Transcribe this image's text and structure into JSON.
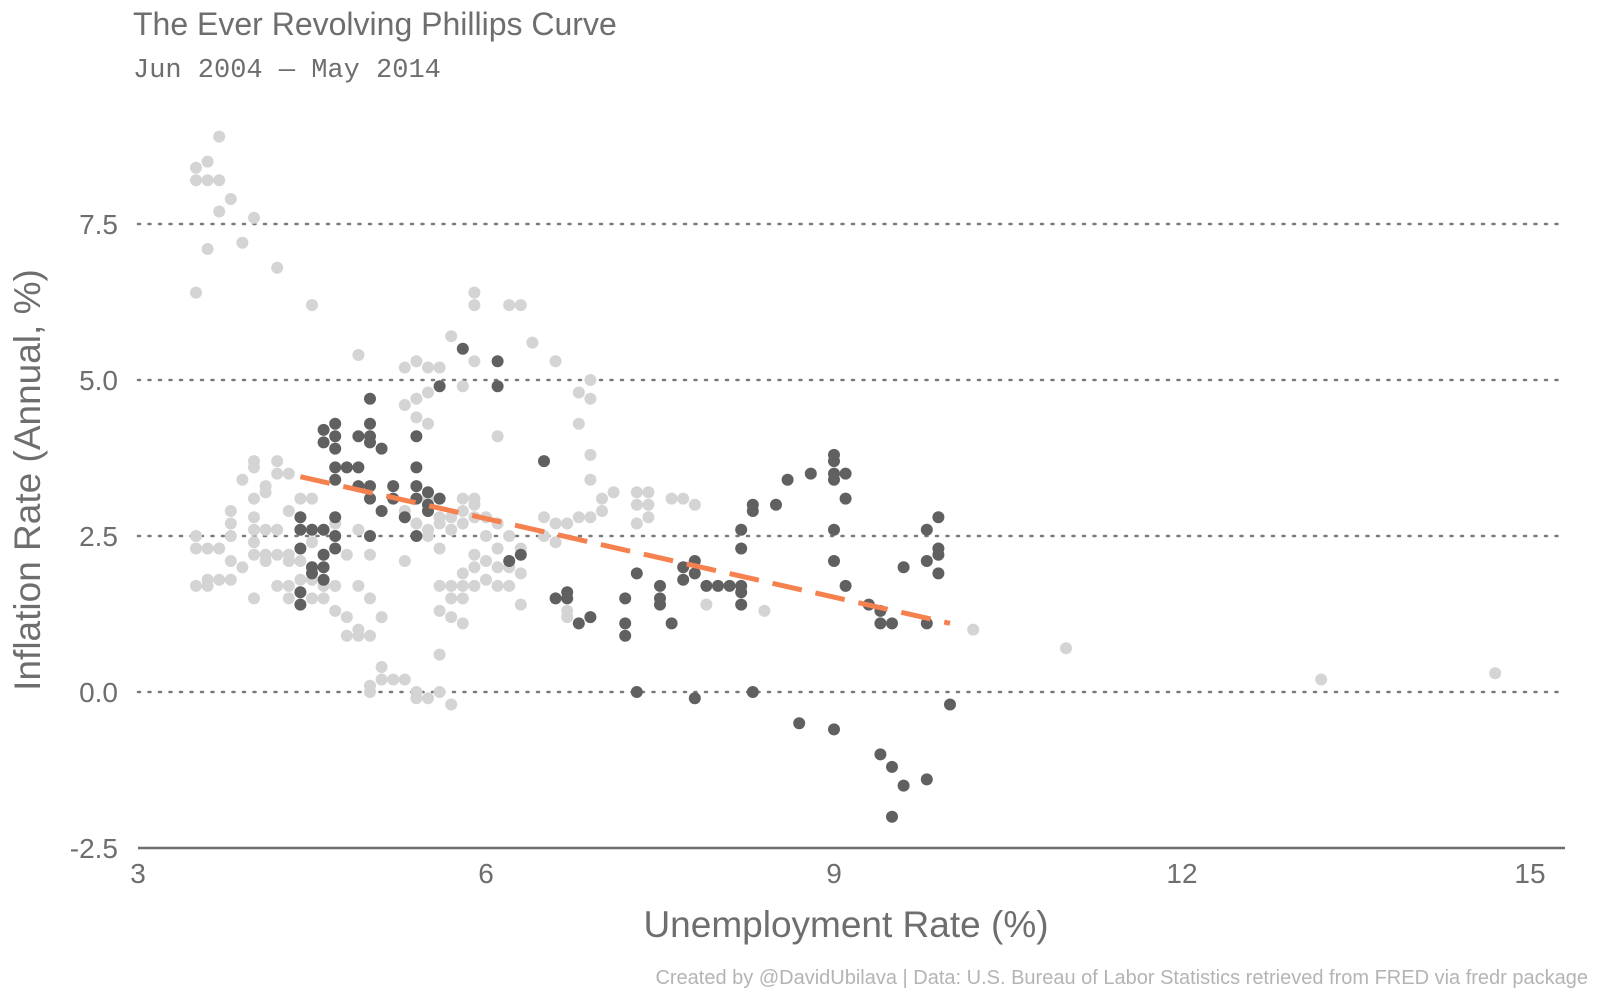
{
  "chart_data": {
    "type": "scatter",
    "title": "The Ever Revolving Phillips Curve",
    "subtitle": "Jun 2004 — May 2014",
    "xlabel": "Unemployment Rate (%)",
    "ylabel": "Inflation Rate (Annual, %)",
    "caption": "Created by @DavidUbilava | Data: U.S. Bureau of Labor Statistics retrieved from FRED via fredr package",
    "xlim": [
      3,
      15.2
    ],
    "ylim": [
      -2.5,
      9.2
    ],
    "xticks": [
      {
        "value": 3,
        "label": "3"
      },
      {
        "value": 6,
        "label": "6"
      },
      {
        "value": 9,
        "label": "9"
      },
      {
        "value": 12,
        "label": "12"
      },
      {
        "value": 15,
        "label": "15"
      }
    ],
    "yticks": [
      {
        "value": -2.5,
        "label": "-2.5"
      },
      {
        "value": 0,
        "label": "0.0"
      },
      {
        "value": 2.5,
        "label": "2.5"
      },
      {
        "value": 5,
        "label": "5.0"
      },
      {
        "value": 7.5,
        "label": "7.5"
      }
    ],
    "grid": "horizontal dotted",
    "colors": {
      "other": "#d4d4d4",
      "highlight": "#606060",
      "trend": "#f5814f",
      "text": "#6e6e6e",
      "caption": "#b4b4b4"
    },
    "series": [
      {
        "points": [
          [
            3.5,
            8.4
          ],
          [
            3.6,
            8.5
          ],
          [
            3.7,
            8.9
          ],
          [
            3.5,
            8.2
          ],
          [
            3.6,
            8.2
          ],
          [
            3.7,
            8.2
          ],
          [
            3.8,
            7.9
          ],
          [
            3.7,
            7.7
          ],
          [
            3.6,
            7.1
          ],
          [
            4.0,
            7.6
          ],
          [
            3.9,
            7.2
          ],
          [
            4.2,
            6.8
          ],
          [
            3.5,
            6.4
          ],
          [
            4.5,
            6.2
          ],
          [
            5.9,
            6.4
          ],
          [
            5.9,
            6.2
          ],
          [
            6.2,
            6.2
          ],
          [
            6.3,
            6.2
          ],
          [
            6.4,
            5.6
          ],
          [
            5.7,
            5.7
          ],
          [
            5.6,
            5.2
          ],
          [
            5.9,
            5.3
          ],
          [
            6.6,
            5.3
          ],
          [
            6.9,
            5.0
          ],
          [
            6.8,
            4.8
          ],
          [
            6.9,
            4.7
          ],
          [
            5.8,
            4.9
          ],
          [
            4.9,
            5.4
          ],
          [
            5.3,
            5.2
          ],
          [
            5.4,
            5.3
          ],
          [
            5.5,
            5.2
          ],
          [
            5.5,
            4.8
          ],
          [
            5.4,
            4.7
          ],
          [
            5.3,
            4.6
          ],
          [
            5.4,
            4.4
          ],
          [
            5.5,
            4.3
          ],
          [
            6.1,
            4.1
          ],
          [
            6.8,
            4.3
          ],
          [
            3.5,
            2.5
          ],
          [
            3.5,
            2.3
          ],
          [
            3.6,
            2.3
          ],
          [
            3.7,
            2.3
          ],
          [
            3.5,
            1.7
          ],
          [
            3.6,
            1.7
          ],
          [
            3.7,
            1.8
          ],
          [
            3.6,
            1.8
          ],
          [
            3.8,
            1.8
          ],
          [
            3.8,
            2.1
          ],
          [
            3.8,
            2.5
          ],
          [
            3.8,
            2.7
          ],
          [
            3.8,
            2.9
          ],
          [
            3.9,
            2.0
          ],
          [
            3.9,
            3.4
          ],
          [
            4.0,
            3.7
          ],
          [
            4.0,
            3.6
          ],
          [
            4.0,
            3.1
          ],
          [
            4.0,
            2.8
          ],
          [
            4.0,
            2.6
          ],
          [
            4.0,
            2.4
          ],
          [
            4.0,
            2.2
          ],
          [
            4.0,
            1.5
          ],
          [
            4.1,
            3.3
          ],
          [
            4.1,
            3.2
          ],
          [
            4.1,
            2.6
          ],
          [
            4.1,
            2.2
          ],
          [
            4.1,
            2.1
          ],
          [
            4.2,
            3.7
          ],
          [
            4.2,
            3.5
          ],
          [
            4.2,
            2.6
          ],
          [
            4.2,
            2.2
          ],
          [
            4.2,
            1.7
          ],
          [
            4.3,
            3.5
          ],
          [
            4.3,
            2.9
          ],
          [
            4.3,
            2.2
          ],
          [
            4.3,
            2.1
          ],
          [
            4.3,
            1.7
          ],
          [
            4.3,
            1.5
          ],
          [
            4.4,
            3.1
          ],
          [
            4.4,
            2.1
          ],
          [
            4.4,
            1.8
          ],
          [
            4.4,
            1.6
          ],
          [
            4.5,
            3.1
          ],
          [
            4.5,
            2.4
          ],
          [
            4.5,
            1.8
          ],
          [
            4.5,
            1.5
          ],
          [
            4.6,
            2.2
          ],
          [
            4.6,
            1.7
          ],
          [
            4.6,
            1.5
          ],
          [
            4.7,
            2.7
          ],
          [
            4.7,
            1.7
          ],
          [
            4.7,
            1.3
          ],
          [
            4.8,
            2.2
          ],
          [
            4.8,
            1.2
          ],
          [
            4.8,
            0.9
          ],
          [
            4.9,
            2.6
          ],
          [
            4.9,
            1.7
          ],
          [
            4.9,
            1.0
          ],
          [
            4.9,
            0.9
          ],
          [
            5.0,
            2.2
          ],
          [
            5.0,
            1.5
          ],
          [
            5.0,
            0.9
          ],
          [
            5.0,
            0.1
          ],
          [
            5.0,
            0.0
          ],
          [
            5.1,
            1.2
          ],
          [
            5.1,
            0.4
          ],
          [
            5.1,
            0.2
          ],
          [
            5.2,
            0.2
          ],
          [
            5.3,
            0.2
          ],
          [
            5.3,
            2.1
          ],
          [
            5.4,
            -0.1
          ],
          [
            5.4,
            0.0
          ],
          [
            5.5,
            -0.1
          ],
          [
            5.6,
            0.6
          ],
          [
            5.6,
            0.0
          ],
          [
            5.6,
            1.3
          ],
          [
            5.6,
            1.7
          ],
          [
            5.7,
            -0.2
          ],
          [
            5.7,
            1.7
          ],
          [
            5.7,
            1.5
          ],
          [
            5.7,
            1.2
          ],
          [
            5.8,
            1.7
          ],
          [
            5.8,
            1.5
          ],
          [
            5.8,
            1.1
          ],
          [
            5.8,
            1.9
          ],
          [
            5.7,
            2.6
          ],
          [
            5.7,
            2.8
          ],
          [
            5.6,
            2.3
          ],
          [
            5.8,
            3.1
          ],
          [
            5.8,
            2.9
          ],
          [
            5.8,
            2.7
          ],
          [
            5.9,
            3.1
          ],
          [
            5.9,
            3.0
          ],
          [
            5.9,
            2.8
          ],
          [
            5.9,
            2.2
          ],
          [
            5.9,
            2.0
          ],
          [
            5.9,
            1.7
          ],
          [
            6.0,
            2.8
          ],
          [
            6.0,
            2.5
          ],
          [
            6.0,
            2.1
          ],
          [
            6.0,
            1.8
          ],
          [
            6.1,
            2.7
          ],
          [
            6.1,
            2.3
          ],
          [
            6.1,
            2.0
          ],
          [
            6.1,
            1.7
          ],
          [
            6.2,
            2.5
          ],
          [
            6.2,
            2.0
          ],
          [
            6.2,
            1.7
          ],
          [
            6.3,
            2.3
          ],
          [
            6.3,
            1.9
          ],
          [
            6.3,
            1.4
          ],
          [
            5.3,
            2.8
          ],
          [
            5.3,
            2.9
          ],
          [
            5.4,
            2.7
          ],
          [
            5.5,
            2.5
          ],
          [
            5.5,
            2.9
          ],
          [
            5.5,
            3.1
          ],
          [
            5.5,
            2.6
          ],
          [
            5.6,
            2.8
          ],
          [
            5.6,
            2.7
          ],
          [
            5.6,
            3.1
          ],
          [
            6.5,
            2.8
          ],
          [
            6.5,
            2.5
          ],
          [
            6.6,
            2.7
          ],
          [
            6.6,
            2.4
          ],
          [
            6.7,
            2.7
          ],
          [
            6.7,
            1.3
          ],
          [
            6.7,
            1.2
          ],
          [
            6.8,
            2.8
          ],
          [
            6.9,
            2.8
          ],
          [
            6.9,
            3.4
          ],
          [
            6.9,
            3.8
          ],
          [
            7.0,
            3.1
          ],
          [
            7.0,
            2.9
          ],
          [
            7.1,
            3.2
          ],
          [
            7.3,
            3.2
          ],
          [
            7.3,
            3.0
          ],
          [
            7.3,
            2.7
          ],
          [
            7.4,
            3.2
          ],
          [
            7.4,
            3.0
          ],
          [
            7.4,
            2.8
          ],
          [
            7.6,
            3.1
          ],
          [
            7.7,
            3.1
          ],
          [
            7.8,
            3.0
          ],
          [
            7.9,
            1.4
          ],
          [
            8.4,
            1.3
          ],
          [
            6.9,
            1.2
          ],
          [
            10.2,
            1.0
          ],
          [
            11.0,
            0.7
          ],
          [
            13.2,
            0.2
          ],
          [
            14.7,
            0.3
          ]
        ]
      },
      {
        "points": [
          [
            4.7,
            4.3
          ],
          [
            4.6,
            4.2
          ],
          [
            4.6,
            4.0
          ],
          [
            4.7,
            4.1
          ],
          [
            4.7,
            3.9
          ],
          [
            4.7,
            3.6
          ],
          [
            4.7,
            3.4
          ],
          [
            4.8,
            3.6
          ],
          [
            4.9,
            3.6
          ],
          [
            4.9,
            4.1
          ],
          [
            5.0,
            4.7
          ],
          [
            5.0,
            4.3
          ],
          [
            5.0,
            4.1
          ],
          [
            5.0,
            4.0
          ],
          [
            5.1,
            3.9
          ],
          [
            5.0,
            3.3
          ],
          [
            5.0,
            3.1
          ],
          [
            5.0,
            2.5
          ],
          [
            4.9,
            3.3
          ],
          [
            5.1,
            2.9
          ],
          [
            5.2,
            3.3
          ],
          [
            5.2,
            3.1
          ],
          [
            5.3,
            2.8
          ],
          [
            5.4,
            4.1
          ],
          [
            5.4,
            3.6
          ],
          [
            5.4,
            3.3
          ],
          [
            5.4,
            3.1
          ],
          [
            5.4,
            2.5
          ],
          [
            5.5,
            3.2
          ],
          [
            5.5,
            3.0
          ],
          [
            5.5,
            2.9
          ],
          [
            5.6,
            3.1
          ],
          [
            5.6,
            4.9
          ],
          [
            5.8,
            5.5
          ],
          [
            6.1,
            5.3
          ],
          [
            6.1,
            4.9
          ],
          [
            4.4,
            2.8
          ],
          [
            4.4,
            2.6
          ],
          [
            4.4,
            2.3
          ],
          [
            4.4,
            1.6
          ],
          [
            4.4,
            1.4
          ],
          [
            4.5,
            2.6
          ],
          [
            4.5,
            2.0
          ],
          [
            4.5,
            1.9
          ],
          [
            4.6,
            2.6
          ],
          [
            4.6,
            2.2
          ],
          [
            4.6,
            2.0
          ],
          [
            4.6,
            1.8
          ],
          [
            4.7,
            2.8
          ],
          [
            4.7,
            2.5
          ],
          [
            4.7,
            2.3
          ],
          [
            6.2,
            2.1
          ],
          [
            6.3,
            2.2
          ],
          [
            6.5,
            3.7
          ],
          [
            6.6,
            1.5
          ],
          [
            6.7,
            1.6
          ],
          [
            6.7,
            1.5
          ],
          [
            6.8,
            1.1
          ],
          [
            6.9,
            1.2
          ],
          [
            7.2,
            1.5
          ],
          [
            7.2,
            1.1
          ],
          [
            7.2,
            0.9
          ],
          [
            7.3,
            1.9
          ],
          [
            7.3,
            0.0
          ],
          [
            7.5,
            1.7
          ],
          [
            7.5,
            1.5
          ],
          [
            7.5,
            1.4
          ],
          [
            7.6,
            1.1
          ],
          [
            7.7,
            2.0
          ],
          [
            7.7,
            1.8
          ],
          [
            7.8,
            2.1
          ],
          [
            7.8,
            1.9
          ],
          [
            7.8,
            -0.1
          ],
          [
            7.9,
            1.7
          ],
          [
            8.0,
            1.7
          ],
          [
            8.1,
            1.7
          ],
          [
            8.2,
            1.7
          ],
          [
            8.2,
            1.6
          ],
          [
            8.2,
            1.4
          ],
          [
            8.2,
            2.6
          ],
          [
            8.2,
            2.3
          ],
          [
            8.3,
            3.0
          ],
          [
            8.3,
            2.9
          ],
          [
            8.3,
            0.0
          ],
          [
            8.5,
            3.0
          ],
          [
            8.6,
            3.4
          ],
          [
            8.7,
            -0.5
          ],
          [
            8.8,
            3.5
          ],
          [
            9.0,
            3.8
          ],
          [
            9.0,
            3.7
          ],
          [
            9.0,
            3.5
          ],
          [
            9.0,
            3.4
          ],
          [
            9.0,
            2.6
          ],
          [
            9.0,
            2.1
          ],
          [
            9.0,
            -0.6
          ],
          [
            9.1,
            3.5
          ],
          [
            9.1,
            3.1
          ],
          [
            9.1,
            1.7
          ],
          [
            9.3,
            1.4
          ],
          [
            9.4,
            1.3
          ],
          [
            9.4,
            1.1
          ],
          [
            9.5,
            1.1
          ],
          [
            9.4,
            -1.0
          ],
          [
            9.5,
            -1.2
          ],
          [
            9.6,
            -1.5
          ],
          [
            9.5,
            -2.0
          ],
          [
            9.6,
            2.0
          ],
          [
            9.8,
            -1.4
          ],
          [
            9.8,
            2.6
          ],
          [
            9.8,
            2.1
          ],
          [
            9.8,
            1.1
          ],
          [
            9.9,
            2.8
          ],
          [
            9.9,
            2.3
          ],
          [
            9.9,
            2.2
          ],
          [
            9.9,
            1.9
          ],
          [
            10.0,
            -0.2
          ]
        ]
      }
    ],
    "trendline": {
      "style": "dashed",
      "x": [
        4.4,
        10.0
      ],
      "y": [
        3.45,
        1.1
      ]
    }
  }
}
